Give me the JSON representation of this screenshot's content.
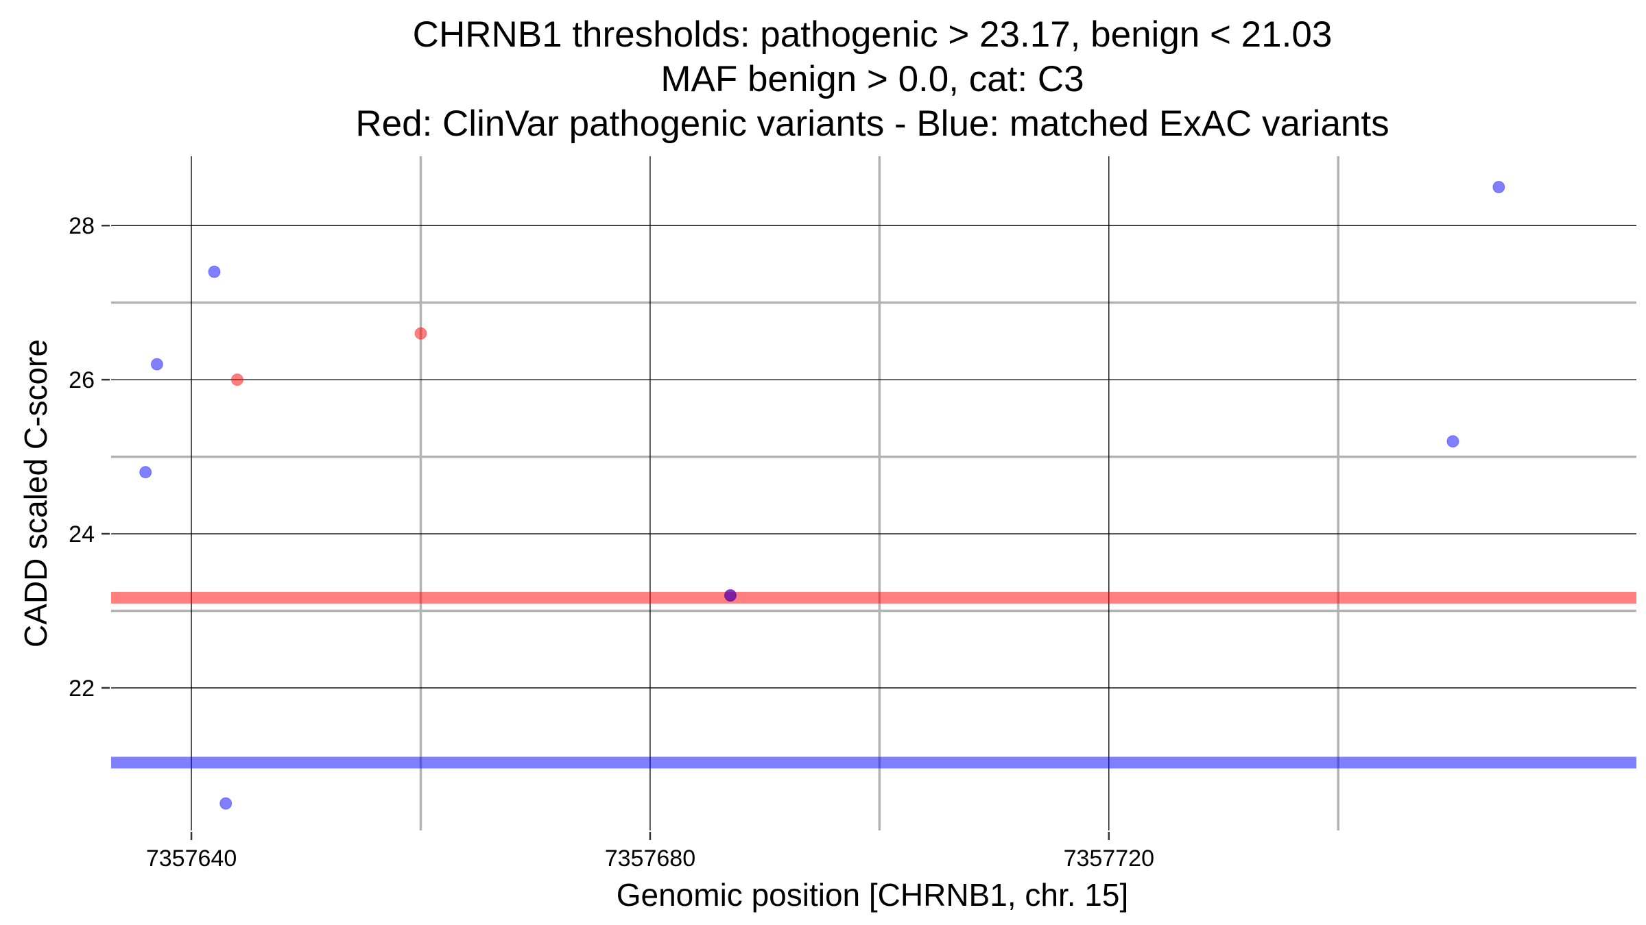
{
  "chart_data": {
    "type": "scatter",
    "title": [
      "CHRNB1 thresholds: pathogenic > 23.17, benign < 21.03",
      "MAF benign > 0.0, cat: C3",
      "Red: ClinVar pathogenic variants - Blue: matched ExAC variants"
    ],
    "xlabel": "Genomic position [CHRNB1, chr. 15]",
    "ylabel": "CADD scaled C-score",
    "xlim": [
      7357633,
      7357766
    ],
    "ylim": [
      20.15,
      28.9
    ],
    "x_ticks": [
      {
        "value": 7357640,
        "label": "7357640"
      },
      {
        "value": 7357680,
        "label": "7357680"
      },
      {
        "value": 7357720,
        "label": "7357720"
      }
    ],
    "x_minor_grid": [
      7357660,
      7357700,
      7357740
    ],
    "y_ticks": [
      {
        "value": 22,
        "label": "22"
      },
      {
        "value": 24,
        "label": "24"
      },
      {
        "value": 26,
        "label": "26"
      },
      {
        "value": 28,
        "label": "28"
      }
    ],
    "y_minor_grid": [
      23,
      25,
      27
    ],
    "grid": true,
    "thresholds": [
      {
        "value": 23.17,
        "color": "#ff0000"
      },
      {
        "value": 21.03,
        "color": "#0000ff"
      }
    ],
    "series": [
      {
        "color": "#ff0000",
        "points": [
          {
            "x": 7357644,
            "y": 26.0
          },
          {
            "x": 7357660,
            "y": 26.6
          },
          {
            "x": 7357687,
            "y": 23.2
          }
        ]
      },
      {
        "color": "#0000ff",
        "points": [
          {
            "x": 7357636,
            "y": 24.8
          },
          {
            "x": 7357637,
            "y": 26.2
          },
          {
            "x": 7357642,
            "y": 27.4
          },
          {
            "x": 7357643,
            "y": 20.5
          },
          {
            "x": 7357687,
            "y": 23.2
          },
          {
            "x": 7357750,
            "y": 25.2
          },
          {
            "x": 7357754,
            "y": 28.5
          }
        ]
      }
    ]
  }
}
